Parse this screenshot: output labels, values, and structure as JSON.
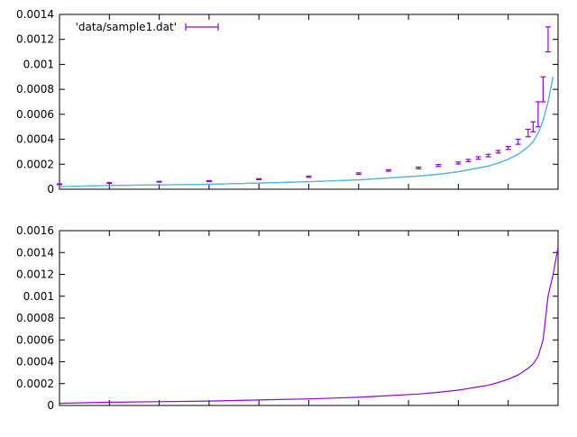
{
  "chart_data": [
    {
      "type": "line",
      "title": "",
      "xlabel": "",
      "ylabel": "",
      "ylim": [
        0,
        0.0014
      ],
      "yticks": [
        "0",
        "0.0002",
        "0.0004",
        "0.0006",
        "0.0008",
        "0.001",
        "0.0012",
        "0.0014"
      ],
      "xtick_labels": [],
      "grid": false,
      "legend_position": "top-left",
      "series": [
        {
          "name": "'data/sample1.dat'",
          "style": "errorbars",
          "color": "#9400d3",
          "x": [
            0.5,
            0.55,
            0.6,
            0.65,
            0.7,
            0.75,
            0.8,
            0.83,
            0.86,
            0.88,
            0.9,
            0.91,
            0.92,
            0.93,
            0.94,
            0.95,
            0.96,
            0.97,
            0.975,
            0.98,
            0.985,
            0.99
          ],
          "y": [
            4e-05,
            5e-05,
            6e-05,
            6.5e-05,
            8e-05,
            0.0001,
            0.000125,
            0.00015,
            0.00017,
            0.00019,
            0.00021,
            0.00023,
            0.00025,
            0.00027,
            0.0003,
            0.00033,
            0.00038,
            0.00045,
            0.0005,
            0.0006,
            0.0008,
            0.0012
          ],
          "yerr": [
            3e-06,
            3e-06,
            3e-06,
            4e-06,
            4e-06,
            5e-06,
            6e-06,
            6e-06,
            7e-06,
            8e-06,
            8e-06,
            9e-06,
            1e-05,
            1e-05,
            1e-05,
            1.2e-05,
            2e-05,
            3e-05,
            4e-05,
            0.0001,
            0.0001,
            0.0001
          ]
        },
        {
          "name": "",
          "style": "line",
          "color": "#009e73",
          "x": [
            0.5,
            0.55,
            0.6,
            0.65,
            0.7,
            0.75,
            0.8,
            0.83,
            0.86,
            0.88,
            0.9,
            0.91,
            0.92,
            0.93,
            0.94,
            0.95,
            0.96,
            0.97,
            0.975,
            0.98,
            0.985,
            0.99,
            0.995
          ],
          "y": [
            2e-05,
            3e-05,
            3.5e-05,
            4e-05,
            5e-05,
            6e-05,
            7.5e-05,
            9e-05,
            0.000105,
            0.00012,
            0.00014,
            0.000155,
            0.00017,
            0.000185,
            0.00021,
            0.00024,
            0.00028,
            0.00034,
            0.00038,
            0.00045,
            0.00055,
            0.0007,
            0.0009
          ]
        },
        {
          "name": "",
          "style": "line",
          "color": "#56b4e9",
          "x": [
            0.5,
            0.55,
            0.6,
            0.65,
            0.7,
            0.75,
            0.8,
            0.83,
            0.86,
            0.88,
            0.9,
            0.91,
            0.92,
            0.93,
            0.94,
            0.95,
            0.96,
            0.97,
            0.975,
            0.98,
            0.985,
            0.99,
            0.995
          ],
          "y": [
            2e-05,
            3e-05,
            3.5e-05,
            4e-05,
            5e-05,
            6e-05,
            7.5e-05,
            9e-05,
            0.000105,
            0.00012,
            0.00014,
            0.000155,
            0.00017,
            0.000185,
            0.00021,
            0.00024,
            0.00028,
            0.00034,
            0.00038,
            0.00045,
            0.00055,
            0.0007,
            0.0009
          ]
        }
      ]
    },
    {
      "type": "line",
      "title": "",
      "xlabel": "",
      "ylabel": "",
      "ylim": [
        0,
        0.0016
      ],
      "yticks": [
        "0",
        "0.0002",
        "0.0004",
        "0.0006",
        "0.0008",
        "0.001",
        "0.0012",
        "0.0014",
        "0.0016"
      ],
      "xtick_labels": [],
      "grid": false,
      "series": [
        {
          "name": "",
          "style": "line",
          "color": "#9400d3",
          "x": [
            0.5,
            0.55,
            0.6,
            0.65,
            0.7,
            0.75,
            0.8,
            0.83,
            0.86,
            0.88,
            0.9,
            0.91,
            0.92,
            0.93,
            0.94,
            0.95,
            0.96,
            0.97,
            0.975,
            0.98,
            0.985,
            0.99,
            0.995,
            1.0
          ],
          "y": [
            2e-05,
            3e-05,
            3.5e-05,
            4e-05,
            5e-05,
            6e-05,
            7.5e-05,
            9e-05,
            0.000105,
            0.00012,
            0.00014,
            0.000155,
            0.00017,
            0.000185,
            0.00021,
            0.00024,
            0.00028,
            0.00034,
            0.00038,
            0.00045,
            0.0006,
            0.001,
            0.0012,
            0.00145
          ]
        }
      ]
    }
  ]
}
